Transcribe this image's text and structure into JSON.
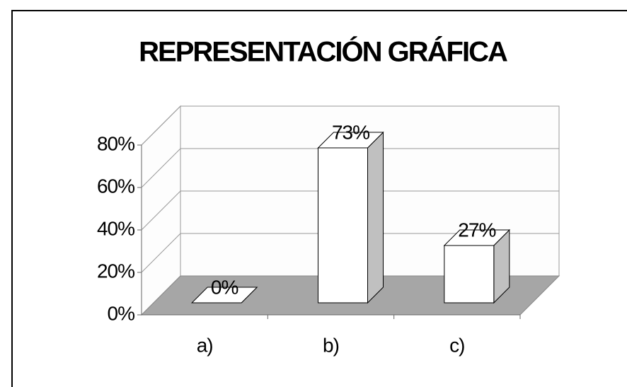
{
  "chart_data": {
    "type": "bar3d",
    "title": "REPRESENTACIÓN GRÁFICA",
    "categories": [
      "a)",
      "b)",
      "c)"
    ],
    "values": [
      0,
      73,
      27
    ],
    "value_labels": [
      "0%",
      "73%",
      "27%"
    ],
    "color": "#ffffff",
    "ylim": [
      0,
      80
    ],
    "yticks": [
      {
        "value": 0,
        "label": "0%"
      },
      {
        "value": 20,
        "label": "20%"
      },
      {
        "value": 40,
        "label": "40%"
      },
      {
        "value": 60,
        "label": "60%"
      },
      {
        "value": 80,
        "label": "80%"
      }
    ],
    "grid": true
  }
}
